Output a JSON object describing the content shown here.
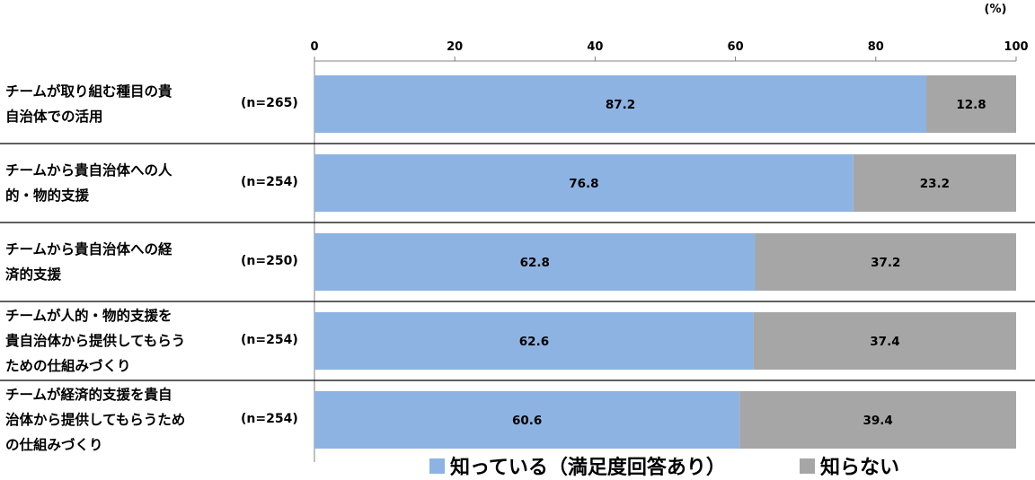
{
  "chart_data": {
    "type": "bar",
    "orientation": "horizontal",
    "stacked": true,
    "unit_label": "(%)",
    "xlim": [
      0,
      100
    ],
    "x_ticks": [
      0,
      20,
      40,
      60,
      80,
      100
    ],
    "categories": [
      {
        "label_lines": [
          "チームが取り組む種目の貴",
          "自治体での活用"
        ],
        "n": "(n=265)"
      },
      {
        "label_lines": [
          "チームから貴自治体への人",
          "的・物的支援"
        ],
        "n": "(n=254)"
      },
      {
        "label_lines": [
          "チームから貴自治体への経",
          "済的支援"
        ],
        "n": "(n=250)"
      },
      {
        "label_lines": [
          "チームが人的・物的支援を",
          "貴自治体から提供してもらう",
          "ための仕組みづくり"
        ],
        "n": "(n=254)"
      },
      {
        "label_lines": [
          "チームが経済的支援を貴自",
          "治体から提供してもらうため",
          "の仕組みづくり"
        ],
        "n": "(n=254)"
      }
    ],
    "series": [
      {
        "name": "知っている（満足度回答あり）",
        "color": "#8db3e2",
        "values": [
          87.2,
          76.8,
          62.8,
          62.6,
          60.6
        ],
        "labels": [
          "87.2",
          "76.8",
          "62.8",
          "62.6",
          "60.6"
        ]
      },
      {
        "name": "知らない",
        "color": "#a6a6a6",
        "values": [
          12.8,
          23.2,
          37.2,
          37.4,
          39.4
        ],
        "labels": [
          "12.8",
          "23.2",
          "37.2",
          "37.4",
          "39.4"
        ]
      }
    ],
    "legend_position": "bottom",
    "grid": false
  }
}
